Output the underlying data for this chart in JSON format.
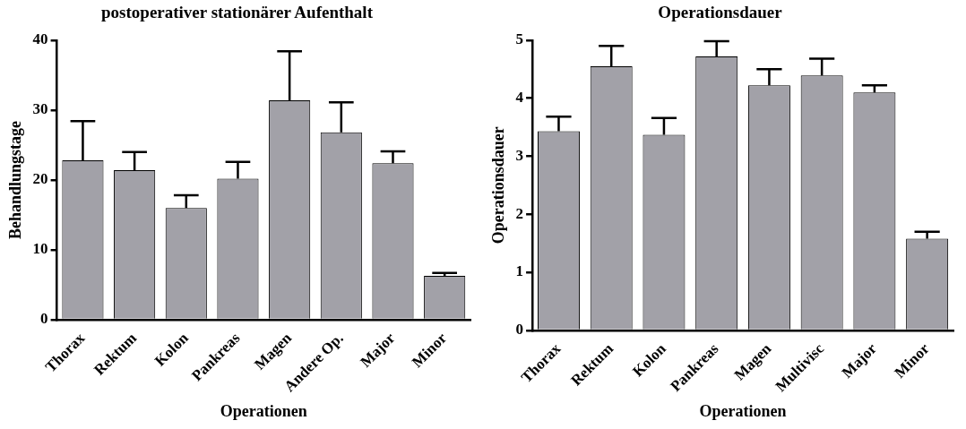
{
  "chart_data": [
    {
      "type": "bar",
      "title": "postoperativer stationärer Aufenthalt",
      "xlabel": "Operationen",
      "ylabel": "Behandlungstage",
      "categories": [
        "Thorax",
        "Rektum",
        "Kolon",
        "Pankreas",
        "Magen",
        "Andere Op.",
        "Major",
        "Minor"
      ],
      "color": "#a2a1a8",
      "values": [
        22.8,
        21.4,
        16.0,
        20.2,
        31.4,
        26.8,
        22.4,
        6.3
      ],
      "errors": [
        [
          22.8,
          28.4
        ],
        [
          21.4,
          24.0
        ],
        [
          16.0,
          17.8
        ],
        [
          20.2,
          22.6
        ],
        [
          31.4,
          38.4
        ],
        [
          26.8,
          31.1
        ],
        [
          22.4,
          24.1
        ],
        [
          6.3,
          6.7
        ]
      ],
      "ylim": [
        0,
        40
      ],
      "yticks": [
        0,
        10,
        20,
        30,
        40
      ]
    },
    {
      "type": "bar",
      "title": "Operationsdauer",
      "xlabel": "Operationen",
      "ylabel": "Operationsdauer",
      "categories": [
        "Thorax",
        "Rektum",
        "Kolon",
        "Pankreas",
        "Magen",
        "Multivisc",
        "Major",
        "Minor"
      ],
      "color": "#a2a1a8",
      "values": [
        3.43,
        4.55,
        3.37,
        4.72,
        4.22,
        4.39,
        4.1,
        1.58
      ],
      "errors": [
        [
          3.43,
          3.68
        ],
        [
          4.55,
          4.9
        ],
        [
          3.37,
          3.66
        ],
        [
          4.72,
          4.98
        ],
        [
          4.22,
          4.5
        ],
        [
          4.39,
          4.68
        ],
        [
          4.1,
          4.22
        ],
        [
          1.58,
          1.7
        ]
      ],
      "ylim": [
        0,
        5
      ],
      "yticks": [
        0,
        1,
        2,
        3,
        4,
        5
      ]
    }
  ]
}
